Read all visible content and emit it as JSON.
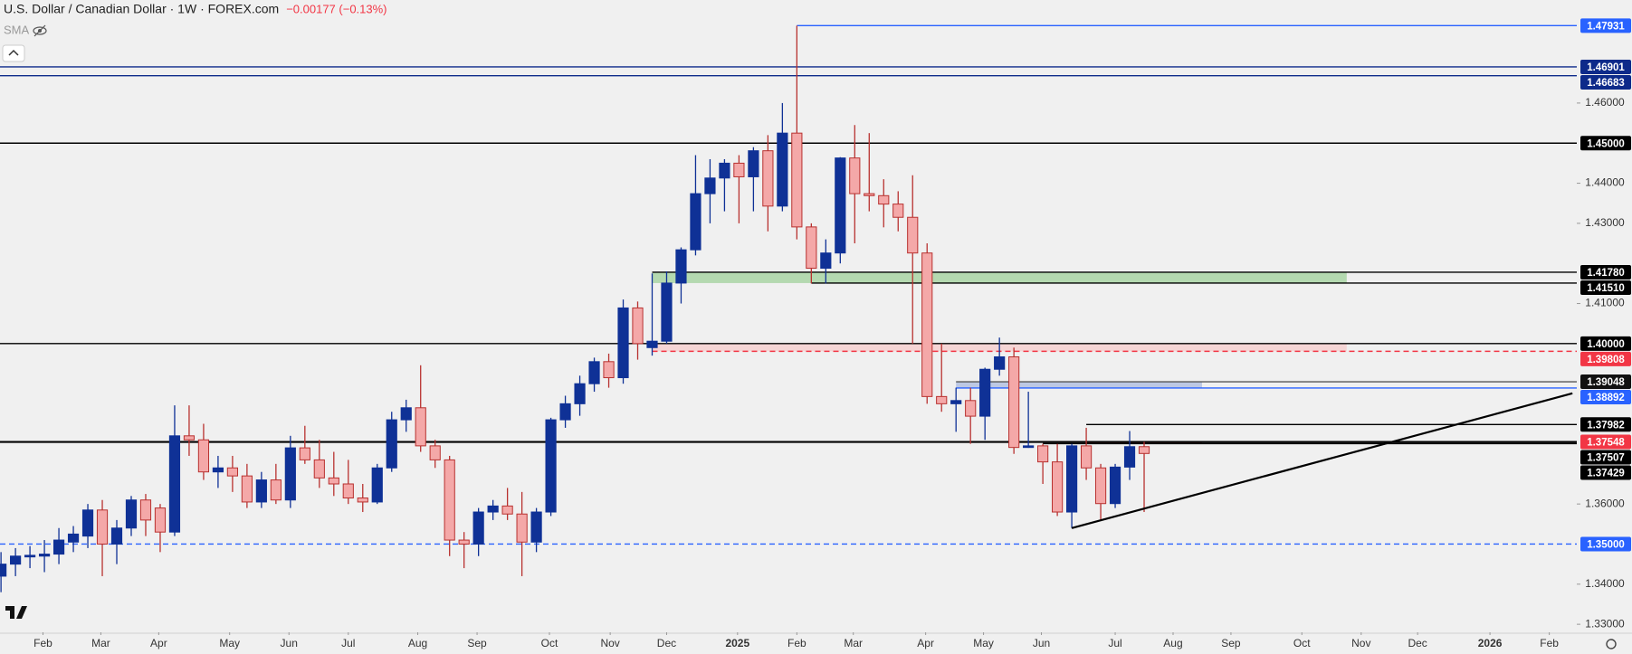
{
  "chart_data": {
    "type": "candlestick",
    "title": "U.S. Dollar / Canadian Dollar · 1W · FOREX.com",
    "change": "−0.00177 (−0.13%)",
    "indicator": "SMA",
    "up_color": "#0f3196",
    "down_color": "#f4a8a8",
    "down_edge": "#b8312f",
    "xlim": [
      -0.07,
      108.9
    ],
    "ylim": [
      1.328,
      1.4857
    ],
    "xticks": [
      {
        "value": 2.9,
        "label": "Feb"
      },
      {
        "value": 6.9,
        "label": "Mar"
      },
      {
        "value": 10.9,
        "label": "Apr"
      },
      {
        "value": 15.8,
        "label": "May"
      },
      {
        "value": 19.9,
        "label": "Jun"
      },
      {
        "value": 24.0,
        "label": "Jul"
      },
      {
        "value": 28.8,
        "label": "Aug"
      },
      {
        "value": 32.9,
        "label": "Sep"
      },
      {
        "value": 37.9,
        "label": "Oct"
      },
      {
        "value": 42.1,
        "label": "Nov"
      },
      {
        "value": 46.0,
        "label": "Dec"
      },
      {
        "value": 50.9,
        "label": "2025"
      },
      {
        "value": 55.0,
        "label": "Feb"
      },
      {
        "value": 58.9,
        "label": "Mar"
      },
      {
        "value": 63.9,
        "label": "Apr"
      },
      {
        "value": 67.9,
        "label": "May"
      },
      {
        "value": 71.9,
        "label": "Jun"
      },
      {
        "value": 77.0,
        "label": "Jul"
      },
      {
        "value": 81.0,
        "label": "Aug"
      },
      {
        "value": 85.0,
        "label": "Sep"
      },
      {
        "value": 89.9,
        "label": "Oct"
      },
      {
        "value": 94.0,
        "label": "Nov"
      },
      {
        "value": 97.9,
        "label": "Dec"
      },
      {
        "value": 102.9,
        "label": "2026"
      },
      {
        "value": 107.0,
        "label": "Feb"
      }
    ],
    "yticks": [
      {
        "value": 1.46,
        "label": "1.46000"
      },
      {
        "value": 1.44,
        "label": "1.44000"
      },
      {
        "value": 1.43,
        "label": "1.43000"
      },
      {
        "value": 1.41,
        "label": "1.41000"
      },
      {
        "value": 1.36,
        "label": "1.36000"
      },
      {
        "value": 1.34,
        "label": "1.34000"
      },
      {
        "value": 1.33,
        "label": "1.33000"
      }
    ],
    "candles": {
      "open": [
        1.342,
        1.345,
        1.3468,
        1.347,
        1.3475,
        1.3505,
        1.352,
        1.3585,
        1.35,
        1.354,
        1.361,
        1.359,
        1.353,
        1.377,
        1.376,
        1.368,
        1.369,
        1.367,
        1.3605,
        1.366,
        1.361,
        1.374,
        1.371,
        1.3665,
        1.365,
        1.3615,
        1.3605,
        1.369,
        1.381,
        1.384,
        1.3745,
        1.371,
        1.351,
        1.35,
        1.358,
        1.3595,
        1.3575,
        1.3505,
        1.358,
        1.381,
        1.385,
        1.39,
        1.3955,
        1.3915,
        1.4089,
        1.399,
        1.4006,
        1.4151,
        1.4234,
        1.4374,
        1.4413,
        1.445,
        1.4416,
        1.4481,
        1.4343,
        1.4525,
        1.4291,
        1.4188,
        1.4226,
        1.4463,
        1.4374,
        1.4369,
        1.4348,
        1.4315,
        1.4226,
        1.3868,
        1.385,
        1.3858,
        1.3819,
        1.3936,
        1.3967,
        1.3741,
        1.3745,
        1.3705,
        1.358,
        1.3745,
        1.369,
        1.3601,
        1.3692,
        1.3743
      ],
      "high": [
        1.348,
        1.349,
        1.3495,
        1.351,
        1.354,
        1.3545,
        1.36,
        1.361,
        1.356,
        1.362,
        1.3625,
        1.36,
        1.3846,
        1.3846,
        1.38,
        1.372,
        1.372,
        1.37,
        1.368,
        1.37,
        1.377,
        1.3795,
        1.376,
        1.373,
        1.371,
        1.365,
        1.37,
        1.383,
        1.386,
        1.3946,
        1.376,
        1.372,
        1.353,
        1.359,
        1.361,
        1.364,
        1.363,
        1.359,
        1.3815,
        1.387,
        1.392,
        1.3965,
        1.3975,
        1.411,
        1.4105,
        1.4175,
        1.418,
        1.424,
        1.447,
        1.446,
        1.446,
        1.447,
        1.449,
        1.452,
        1.46,
        1.4793,
        1.43,
        1.426,
        1.4465,
        1.4545,
        1.4525,
        1.441,
        1.438,
        1.442,
        1.425,
        1.4,
        1.389,
        1.389,
        1.394,
        1.4015,
        1.399,
        1.388,
        1.375,
        1.375,
        1.375,
        1.379,
        1.37,
        1.37,
        1.3782,
        1.3755
      ],
      "low": [
        1.338,
        1.342,
        1.344,
        1.343,
        1.345,
        1.348,
        1.349,
        1.342,
        1.345,
        1.352,
        1.352,
        1.348,
        1.352,
        1.372,
        1.366,
        1.364,
        1.363,
        1.359,
        1.359,
        1.36,
        1.359,
        1.37,
        1.364,
        1.362,
        1.36,
        1.358,
        1.36,
        1.368,
        1.378,
        1.373,
        1.369,
        1.347,
        1.344,
        1.347,
        1.356,
        1.356,
        1.342,
        1.348,
        1.357,
        1.379,
        1.382,
        1.388,
        1.389,
        1.39,
        1.396,
        1.397,
        1.4,
        1.41,
        1.422,
        1.43,
        1.433,
        1.43,
        1.433,
        1.428,
        1.433,
        1.426,
        1.415,
        1.415,
        1.42,
        1.425,
        1.433,
        1.429,
        1.428,
        1.4,
        1.385,
        1.383,
        1.378,
        1.375,
        1.376,
        1.392,
        1.3725,
        1.374,
        1.365,
        1.357,
        1.354,
        1.366,
        1.356,
        1.359,
        1.366,
        1.358
      ],
      "close": [
        1.345,
        1.347,
        1.3472,
        1.3475,
        1.351,
        1.3525,
        1.3585,
        1.35,
        1.354,
        1.361,
        1.356,
        1.353,
        1.377,
        1.376,
        1.368,
        1.369,
        1.367,
        1.3605,
        1.366,
        1.361,
        1.374,
        1.371,
        1.3665,
        1.365,
        1.3615,
        1.3605,
        1.369,
        1.381,
        1.384,
        1.3745,
        1.371,
        1.351,
        1.35,
        1.358,
        1.3595,
        1.3575,
        1.3505,
        1.358,
        1.381,
        1.385,
        1.39,
        1.3955,
        1.3915,
        1.4089,
        1.4,
        1.4006,
        1.4151,
        1.4234,
        1.4374,
        1.4413,
        1.445,
        1.4416,
        1.4481,
        1.4343,
        1.4525,
        1.4291,
        1.4188,
        1.4226,
        1.4463,
        1.4374,
        1.4369,
        1.4348,
        1.4315,
        1.4226,
        1.3868,
        1.385,
        1.3858,
        1.3819,
        1.3936,
        1.3967,
        1.3741,
        1.3745,
        1.3705,
        1.358,
        1.3745,
        1.369,
        1.3601,
        1.3692,
        1.3743,
        1.3726
      ]
    },
    "zones": [
      {
        "low": 1.4151,
        "high": 1.4178,
        "from": 45,
        "to": 93,
        "color": "#a9d5a4"
      },
      {
        "low": 1.39808,
        "high": 1.4,
        "from": 45,
        "to": 93,
        "color": "#f6d0d0"
      },
      {
        "low": 1.38892,
        "high": 1.39048,
        "from": 66,
        "to": 83,
        "color": "#b4c1e0"
      },
      {
        "low": 1.37507,
        "high": 1.37548,
        "from": 75,
        "to": 83,
        "color": "#f05a5a"
      }
    ],
    "levels": [
      {
        "value": 1.47931,
        "label": "1.47931",
        "from": 55,
        "color": "#2962ff",
        "style": "solid"
      },
      {
        "value": 1.46901,
        "label": "1.46901",
        "color": "#0d2a8a",
        "style": "solid"
      },
      {
        "value": 1.46683,
        "label": "1.46683",
        "color": "#0d2a8a",
        "style": "solid"
      },
      {
        "value": 1.45,
        "label": "1.45000",
        "color": "#000000",
        "style": "solid"
      },
      {
        "value": 1.4178,
        "label": "1.41780",
        "from": 45,
        "color": "#000000",
        "style": "solid"
      },
      {
        "value": 1.4151,
        "label": "1.41510",
        "from": 56,
        "color": "#000000",
        "style": "solid"
      },
      {
        "value": 1.4,
        "label": "1.40000",
        "color": "#000000",
        "style": "solid"
      },
      {
        "value": 1.39808,
        "label": "1.39808",
        "from": 45,
        "color": "#f23645",
        "style": "dashed"
      },
      {
        "value": 1.39048,
        "label": "1.39048",
        "from": 66,
        "color": "#555555",
        "style": "solid"
      },
      {
        "value": 1.38892,
        "label": "1.38892",
        "from": 66,
        "color": "#2962ff",
        "style": "solid"
      },
      {
        "value": 1.37982,
        "label": "1.37982",
        "from": 75,
        "color": "#000000",
        "style": "solid"
      },
      {
        "value": 1.37548,
        "label": "1.37548",
        "color": "#000000",
        "style": "bold",
        "tag": "#f23645"
      },
      {
        "value": 1.37507,
        "label": "1.37507",
        "from": 72,
        "color": "#000000",
        "style": "solid"
      },
      {
        "value": 1.37429,
        "label": "1.37429",
        "color": "#000000",
        "style": "none"
      },
      {
        "value": 1.35,
        "label": "1.35000",
        "color": "#2962ff",
        "style": "dashed"
      }
    ],
    "trendline": {
      "x": [
        74,
        108.6
      ],
      "y": [
        1.354,
        1.3876
      ],
      "color": "#000000"
    }
  }
}
